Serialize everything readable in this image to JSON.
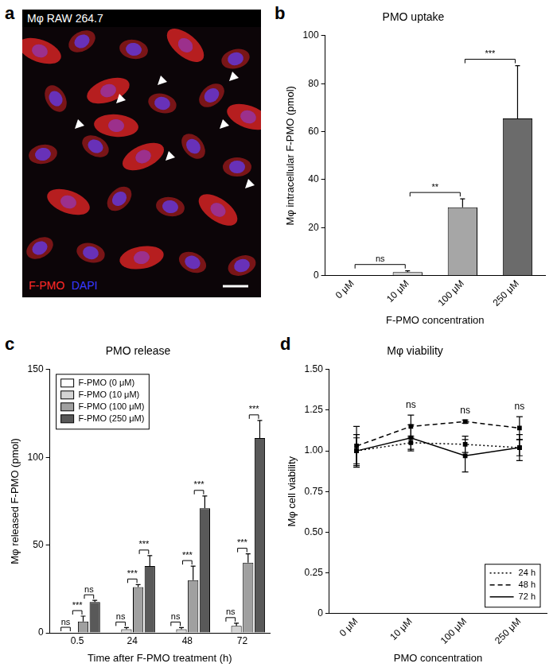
{
  "image_panel": {
    "panel_label": "a",
    "title": "Mφ RAW 264.7",
    "channels": [
      {
        "name": "F-PMO",
        "color": "#ff2a2a"
      },
      {
        "name": "DAPI",
        "color": "#3a3aff"
      }
    ]
  },
  "chart_data": [
    {
      "panel_label": "b",
      "type": "bar",
      "title": "PMO uptake",
      "x_label": "F-PMO concentration",
      "y_label": "Mφ intracellular F-PMO (pmol)",
      "categories": [
        "0 μM",
        "10 μM",
        "100 μM",
        "250 μM"
      ],
      "values": [
        0,
        1.5,
        28.5,
        65.5
      ],
      "errors": [
        0,
        0.5,
        3.5,
        22
      ],
      "colors": [
        "#ffffff",
        "#cfcfcf",
        "#a6a6a6",
        "#6b6b6b"
      ],
      "ylim": [
        0,
        100
      ],
      "yticks": [
        0,
        20,
        40,
        60,
        80,
        100
      ],
      "grid": false,
      "comparisons": [
        {
          "from": "0 μM",
          "to": "10 μM",
          "label": "ns"
        },
        {
          "from": "10 μM",
          "to": "100 μM",
          "label": "**"
        },
        {
          "from": "100 μM",
          "to": "250 μM",
          "label": "***"
        }
      ]
    },
    {
      "panel_label": "c",
      "type": "bar",
      "title": "PMO release",
      "x_label": "Time after F-PMO treatment (h)",
      "y_label": "Mφ released F-PMO (pmol)",
      "categories": [
        "0.5",
        "24",
        "48",
        "72"
      ],
      "series": [
        {
          "name": "F-PMO (0 μM)",
          "color": "#ffffff",
          "values": [
            0,
            0,
            0,
            0
          ],
          "errors": [
            0,
            0,
            0,
            0
          ]
        },
        {
          "name": "F-PMO (10 μM)",
          "color": "#d4d4d4",
          "values": [
            0,
            2,
            2,
            4
          ],
          "errors": [
            0,
            1,
            1,
            1.5
          ]
        },
        {
          "name": "F-PMO (100 μM)",
          "color": "#a0a0a0",
          "values": [
            6.5,
            26,
            30,
            40
          ],
          "errors": [
            3,
            1.5,
            8,
            5
          ]
        },
        {
          "name": "F-PMO (250 μM)",
          "color": "#595959",
          "values": [
            17.5,
            38,
            71,
            111
          ],
          "errors": [
            1,
            6,
            7,
            10
          ]
        }
      ],
      "ylim": [
        0,
        150
      ],
      "yticks": [
        0,
        50,
        100,
        150
      ],
      "grid": false,
      "legend": "upper left",
      "comparisons": [
        {
          "category": "0.5",
          "from": "F-PMO (0 μM)",
          "to": "F-PMO (10 μM)",
          "label": "ns"
        },
        {
          "category": "0.5",
          "from": "F-PMO (10 μM)",
          "to": "F-PMO (100 μM)",
          "label": "***"
        },
        {
          "category": "0.5",
          "from": "F-PMO (100 μM)",
          "to": "F-PMO (250 μM)",
          "label": "ns"
        },
        {
          "category": "24",
          "from": "F-PMO (0 μM)",
          "to": "F-PMO (10 μM)",
          "label": "ns"
        },
        {
          "category": "24",
          "from": "F-PMO (10 μM)",
          "to": "F-PMO (100 μM)",
          "label": "***"
        },
        {
          "category": "24",
          "from": "F-PMO (100 μM)",
          "to": "F-PMO (250 μM)",
          "label": "***"
        },
        {
          "category": "48",
          "from": "F-PMO (0 μM)",
          "to": "F-PMO (10 μM)",
          "label": "ns"
        },
        {
          "category": "48",
          "from": "F-PMO (10 μM)",
          "to": "F-PMO (100 μM)",
          "label": "***"
        },
        {
          "category": "48",
          "from": "F-PMO (100 μM)",
          "to": "F-PMO (250 μM)",
          "label": "***"
        },
        {
          "category": "72",
          "from": "F-PMO (0 μM)",
          "to": "F-PMO (10 μM)",
          "label": "ns"
        },
        {
          "category": "72",
          "from": "F-PMO (10 μM)",
          "to": "F-PMO (100 μM)",
          "label": "***"
        },
        {
          "category": "72",
          "from": "F-PMO (100 μM)",
          "to": "F-PMO (250 μM)",
          "label": "***"
        }
      ]
    },
    {
      "panel_label": "d",
      "type": "line",
      "title": "Mφ viability",
      "x_label": "PMO concentration",
      "y_label": "Mφ cell viability",
      "categories": [
        "0 μM",
        "10 μM",
        "100 μM",
        "250 μM"
      ],
      "series": [
        {
          "name": "24 h",
          "color": "#000000",
          "line_style": "dotted",
          "marker": "square",
          "values": [
            1.0,
            1.05,
            1.04,
            1.02
          ],
          "errors": [
            0.1,
            0.04,
            0.05,
            0.05
          ]
        },
        {
          "name": "48 h",
          "color": "#000000",
          "line_style": "dashed",
          "marker": "square",
          "values": [
            1.03,
            1.15,
            1.18,
            1.14
          ],
          "errors": [
            0.12,
            0.07,
            0.01,
            0.07
          ]
        },
        {
          "name": "72 h",
          "color": "#000000",
          "line_style": "solid",
          "marker": "square",
          "values": [
            1.0,
            1.08,
            0.97,
            1.02
          ],
          "errors": [
            0.08,
            0.08,
            0.1,
            0.08
          ]
        }
      ],
      "ylim": [
        0,
        1.5
      ],
      "yticks": [
        0,
        0.25,
        {
          "value": 0.5,
          "label": "0.50"
        },
        0.75,
        {
          "value": 1,
          "label": "1.00"
        },
        1.25,
        {
          "value": 1.5,
          "label": "1.50"
        }
      ],
      "grid": false,
      "legend": "lower right",
      "annotations": [
        {
          "category": "10 μM",
          "text": "ns"
        },
        {
          "category": "100 μM",
          "text": "ns"
        },
        {
          "category": "250 μM",
          "text": "ns"
        }
      ]
    }
  ]
}
